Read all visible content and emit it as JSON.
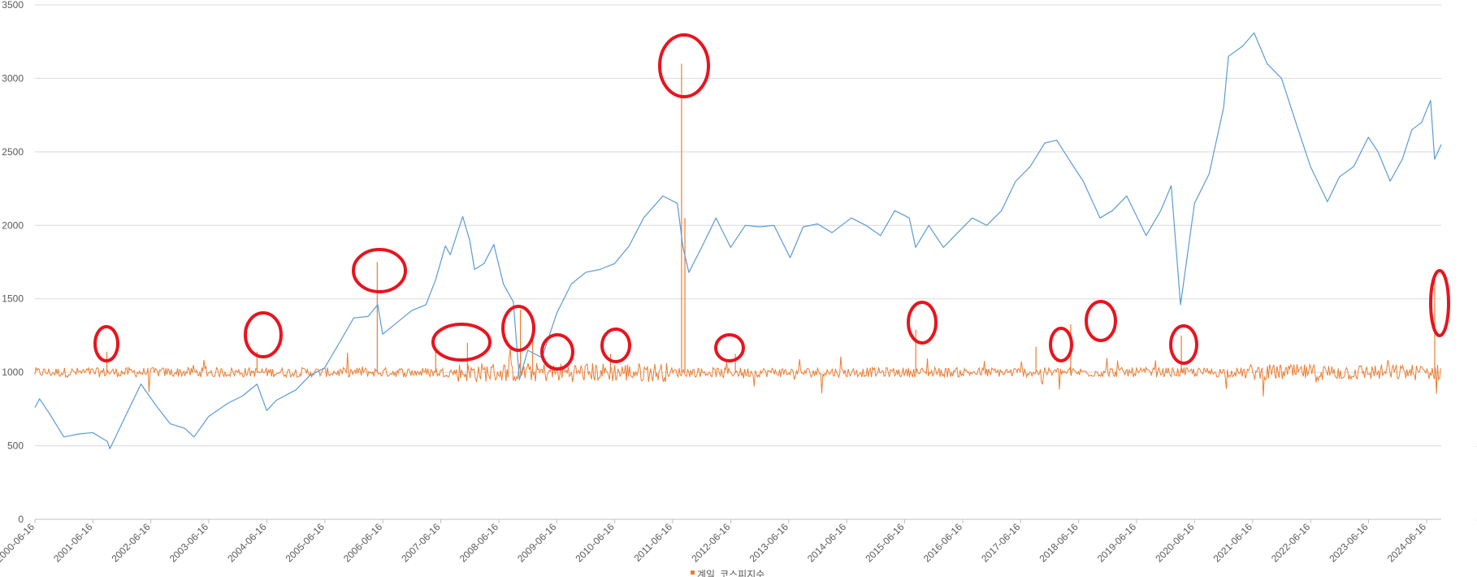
{
  "colors": {
    "kospi_line": "#5B9BD5",
    "spike_line": "#ED7D31",
    "highlight_ellipse": "#E8141F",
    "gridline": "#D9D9D9",
    "tick_text": "#595959"
  },
  "legend": {
    "entries": [
      "계일_코스피지수"
    ]
  },
  "chart_data": {
    "type": "line",
    "grid": true,
    "legend_position": "bottom",
    "x_start": "2000-06-16",
    "x_end": "2024-09-16",
    "x_tick_labels": [
      "2000-06-16",
      "2001-06-16",
      "2002-06-16",
      "2003-06-16",
      "2004-06-16",
      "2005-06-16",
      "2006-06-16",
      "2007-06-16",
      "2008-06-16",
      "2009-06-16",
      "2010-06-16",
      "2011-06-16",
      "2012-06-16",
      "2013-06-16",
      "2014-06-16",
      "2015-06-16",
      "2016-06-16",
      "2017-06-16",
      "2018-06-16",
      "2019-06-16",
      "2020-06-16",
      "2021-06-16",
      "2022-06-16",
      "2023-06-16",
      "2024-06-16"
    ],
    "y_left": {
      "range": [
        0,
        3500
      ],
      "ticks": [
        "0",
        "500",
        "1000",
        "1500",
        "2000",
        "2500",
        "3000",
        "3500"
      ]
    },
    "y_right": {
      "range": [
        -2000,
        5000
      ],
      "ticks": [
        "-2000",
        "-1000",
        "0",
        "1000",
        "2000",
        "3000",
        "4000",
        "5000"
      ]
    },
    "series": [
      {
        "name": "",
        "axis": "left",
        "x": [
          "2000-06-16",
          "2000-07-15",
          "2000-09-15",
          "2000-12-15",
          "2001-03-15",
          "2001-06-15",
          "2001-09-15",
          "2001-10-01",
          "2002-01-15",
          "2002-04-15",
          "2002-07-15",
          "2002-10-15",
          "2003-01-15",
          "2003-03-15",
          "2003-06-15",
          "2003-10-15",
          "2004-01-15",
          "2004-04-15",
          "2004-06-15",
          "2004-08-15",
          "2004-12-15",
          "2005-03-15",
          "2005-06-15",
          "2005-09-15",
          "2005-12-15",
          "2006-03-15",
          "2006-05-15",
          "2006-06-15",
          "2006-09-15",
          "2006-12-15",
          "2007-03-15",
          "2007-05-15",
          "2007-07-15",
          "2007-08-15",
          "2007-11-01",
          "2007-12-15",
          "2008-01-15",
          "2008-03-15",
          "2008-05-15",
          "2008-07-15",
          "2008-09-15",
          "2008-10-24",
          "2008-12-15",
          "2009-03-15",
          "2009-06-15",
          "2009-09-15",
          "2009-12-15",
          "2010-03-15",
          "2010-06-15",
          "2010-09-15",
          "2010-12-15",
          "2011-04-15",
          "2011-07-15",
          "2011-08-20",
          "2011-09-26",
          "2011-12-15",
          "2012-03-15",
          "2012-06-15",
          "2012-09-15",
          "2012-12-15",
          "2013-03-15",
          "2013-06-25",
          "2013-09-15",
          "2013-12-15",
          "2014-03-15",
          "2014-07-15",
          "2014-10-15",
          "2015-01-15",
          "2015-04-15",
          "2015-07-15",
          "2015-08-24",
          "2015-11-15",
          "2016-02-15",
          "2016-05-15",
          "2016-08-15",
          "2016-11-15",
          "2017-02-15",
          "2017-05-15",
          "2017-08-15",
          "2017-11-15",
          "2018-01-29",
          "2018-04-15",
          "2018-07-15",
          "2018-10-29",
          "2019-01-15",
          "2019-04-15",
          "2019-08-15",
          "2019-11-15",
          "2020-01-20",
          "2020-03-19",
          "2020-06-15",
          "2020-09-15",
          "2020-12-15",
          "2021-01-15",
          "2021-04-15",
          "2021-06-25",
          "2021-09-15",
          "2021-12-15",
          "2022-03-15",
          "2022-06-15",
          "2022-09-30",
          "2022-12-15",
          "2023-03-15",
          "2023-06-15",
          "2023-08-15",
          "2023-10-30",
          "2024-01-15",
          "2024-03-15",
          "2024-05-15",
          "2024-07-11",
          "2024-08-05",
          "2024-09-16"
        ],
        "values": [
          760,
          820,
          720,
          560,
          580,
          590,
          530,
          480,
          720,
          920,
          780,
          650,
          620,
          560,
          700,
          790,
          840,
          920,
          740,
          810,
          880,
          980,
          1030,
          1200,
          1370,
          1380,
          1460,
          1260,
          1340,
          1420,
          1460,
          1630,
          1860,
          1800,
          2060,
          1900,
          1700,
          1740,
          1870,
          1600,
          1480,
          950,
          1150,
          1100,
          1400,
          1600,
          1680,
          1700,
          1740,
          1860,
          2050,
          2200,
          2150,
          1850,
          1680,
          1850,
          2050,
          1850,
          2000,
          1990,
          2000,
          1780,
          1990,
          2010,
          1950,
          2050,
          2000,
          1930,
          2100,
          2050,
          1850,
          2000,
          1850,
          1950,
          2050,
          2000,
          2100,
          2300,
          2400,
          2560,
          2580,
          2450,
          2300,
          2050,
          2100,
          2200,
          1930,
          2100,
          2270,
          1460,
          2150,
          2350,
          2800,
          3150,
          3220,
          3310,
          3100,
          3000,
          2700,
          2400,
          2160,
          2330,
          2400,
          2600,
          2500,
          2300,
          2450,
          2650,
          2700,
          2850,
          2450,
          2550
        ]
      },
      {
        "name": "",
        "axis": "right",
        "x": [
          "2001-09-12",
          "2004-04-15",
          "2006-05-12",
          "2007-05-15",
          "2007-12-01",
          "2008-10-30",
          "2009-01-15",
          "2010-05-20",
          "2011-08-11",
          "2011-09-01",
          "2012-07-15",
          "2015-08-25",
          "2017-09-20",
          "2018-04-27",
          "2020-03-24",
          "2024-08-06"
        ],
        "values": [
          280,
          280,
          1500,
          320,
          400,
          850,
          520,
          250,
          4200,
          2100,
          250,
          580,
          350,
          650,
          500,
          1300
        ]
      }
    ]
  }
}
